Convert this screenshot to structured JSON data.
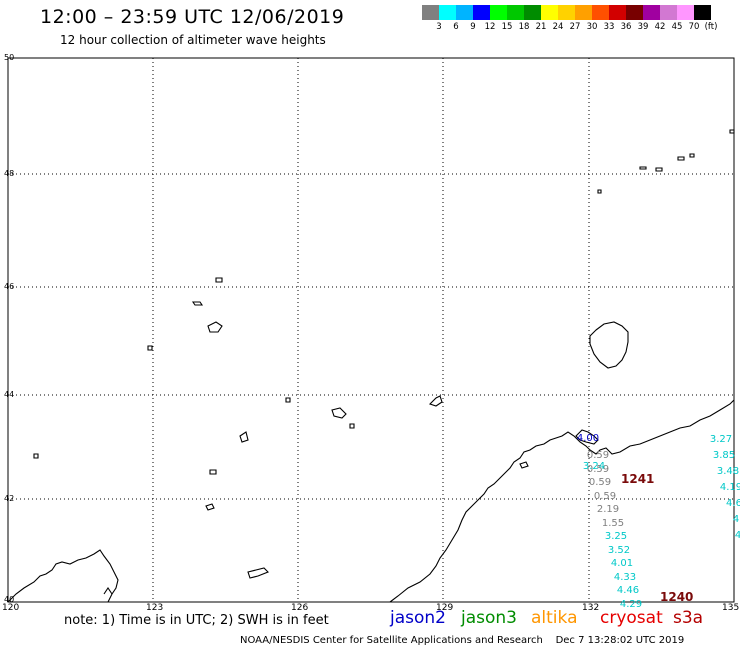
{
  "header": {
    "title": "12:00 – 23:59 UTC 12/06/2019",
    "subtitle": "12 hour collection of altimeter wave heights"
  },
  "colorbar": {
    "colors": [
      "#808080",
      "#00ffff",
      "#00b4ff",
      "#0000ff",
      "#00ff00",
      "#00c800",
      "#008c00",
      "#ffff00",
      "#ffd200",
      "#ffa000",
      "#ff5000",
      "#d20000",
      "#780000",
      "#a000a0",
      "#d278d2",
      "#ff96ff",
      "#000000"
    ],
    "labels": [
      "3",
      "6",
      "9",
      "12",
      "15",
      "18",
      "21",
      "24",
      "27",
      "30",
      "33",
      "36",
      "39",
      "42",
      "45",
      "70",
      "(ft)"
    ]
  },
  "axes": {
    "lat_labels": [
      "50",
      "48",
      "46",
      "44",
      "42",
      "40"
    ],
    "lon_labels": [
      "120",
      "123",
      "126",
      "129",
      "132",
      "135"
    ]
  },
  "passes": [
    {
      "values": [
        "0.59",
        "0.59",
        "0.59",
        "0.59",
        "2.19",
        "1.55",
        "3.25",
        "3.52",
        "4.01",
        "4.33",
        "4.46",
        "4.29"
      ],
      "colors": [
        "#808080",
        "#808080",
        "#808080",
        "#808080",
        "#808080",
        "#808080",
        "#00c8c8",
        "#00c8c8",
        "#00c8c8",
        "#00c8c8",
        "#00c8c8",
        "#00c8c8"
      ]
    },
    {
      "values": [
        "3.27",
        "3.85",
        "3.48",
        "4.19",
        "4.6",
        "4",
        "4"
      ],
      "colors": [
        "#00c8c8",
        "#00c8c8",
        "#00c8c8",
        "#00c8c8",
        "#00c8c8",
        "#00c8c8",
        "#00c8c8"
      ]
    }
  ],
  "extra_labels": {
    "blue_top": "4.00",
    "cyan_3_24": "3.24"
  },
  "time_tags": [
    "1241",
    "1240"
  ],
  "footer": {
    "note": "note: 1) Time is in UTC; 2) SWH is in feet",
    "satellites": [
      {
        "name": "jason2",
        "color": "#0000c8"
      },
      {
        "name": "jason3",
        "color": "#008c00"
      },
      {
        "name": "altika",
        "color": "#ff9600"
      },
      {
        "name": "cryosat",
        "color": "#e60000"
      },
      {
        "name": "s3a",
        "color": "#b40000"
      }
    ],
    "credit": "NOAA/NESDIS Center for Satellite Applications and Research",
    "timestamp": "Dec  7 13:28:02 UTC 2019"
  }
}
